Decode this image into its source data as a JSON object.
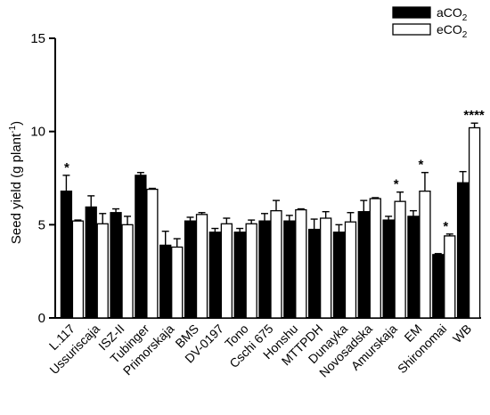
{
  "chart_data": {
    "type": "bar",
    "title": "",
    "xlabel": "",
    "ylabel_main": "Seed yield (g plant",
    "ylabel_sup": "-1",
    "ylabel_close": ")",
    "ylim": [
      0,
      15
    ],
    "yticks": [
      0,
      5,
      10,
      15
    ],
    "legend_position": "top-right",
    "grid": false,
    "categories": [
      "L.117",
      "Ussuriscaja",
      "ISZ-II",
      "Tubinger",
      "Primorskaja",
      "BMS",
      "DV-0197",
      "Tono",
      "Cschi 675",
      "Honshu",
      "MTTPDH",
      "Dunayka",
      "Novosadska",
      "Amurskaja",
      "EM",
      "Shironomai",
      "WB"
    ],
    "series": [
      {
        "name_main": "aCO",
        "name_sub": "2",
        "fill": "#000000",
        "values": [
          6.8,
          5.95,
          5.65,
          7.65,
          3.9,
          5.2,
          4.6,
          4.6,
          5.2,
          5.2,
          4.75,
          4.6,
          5.7,
          5.25,
          5.45,
          3.4,
          7.25
        ],
        "errors": [
          0.85,
          0.6,
          0.2,
          0.15,
          0.75,
          0.2,
          0.2,
          0.2,
          0.4,
          0.3,
          0.55,
          0.4,
          0.6,
          0.2,
          0.3,
          0.05,
          0.6
        ]
      },
      {
        "name_main": "eCO",
        "name_sub": "2",
        "fill": "#ffffff",
        "values": [
          5.2,
          5.05,
          5.0,
          6.9,
          3.8,
          5.55,
          5.05,
          5.05,
          5.75,
          5.8,
          5.35,
          5.15,
          6.4,
          6.25,
          6.8,
          4.4,
          10.2
        ],
        "errors": [
          0.05,
          0.55,
          0.45,
          0.05,
          0.45,
          0.1,
          0.3,
          0.2,
          0.55,
          0.05,
          0.35,
          0.5,
          0.05,
          0.5,
          1.0,
          0.1,
          0.25
        ]
      }
    ],
    "significance": [
      {
        "category_index": 0,
        "label": "*"
      },
      {
        "category_index": 13,
        "label": "*"
      },
      {
        "category_index": 14,
        "label": "*"
      },
      {
        "category_index": 15,
        "label": "*"
      },
      {
        "category_index": 16,
        "label": "****"
      }
    ]
  }
}
